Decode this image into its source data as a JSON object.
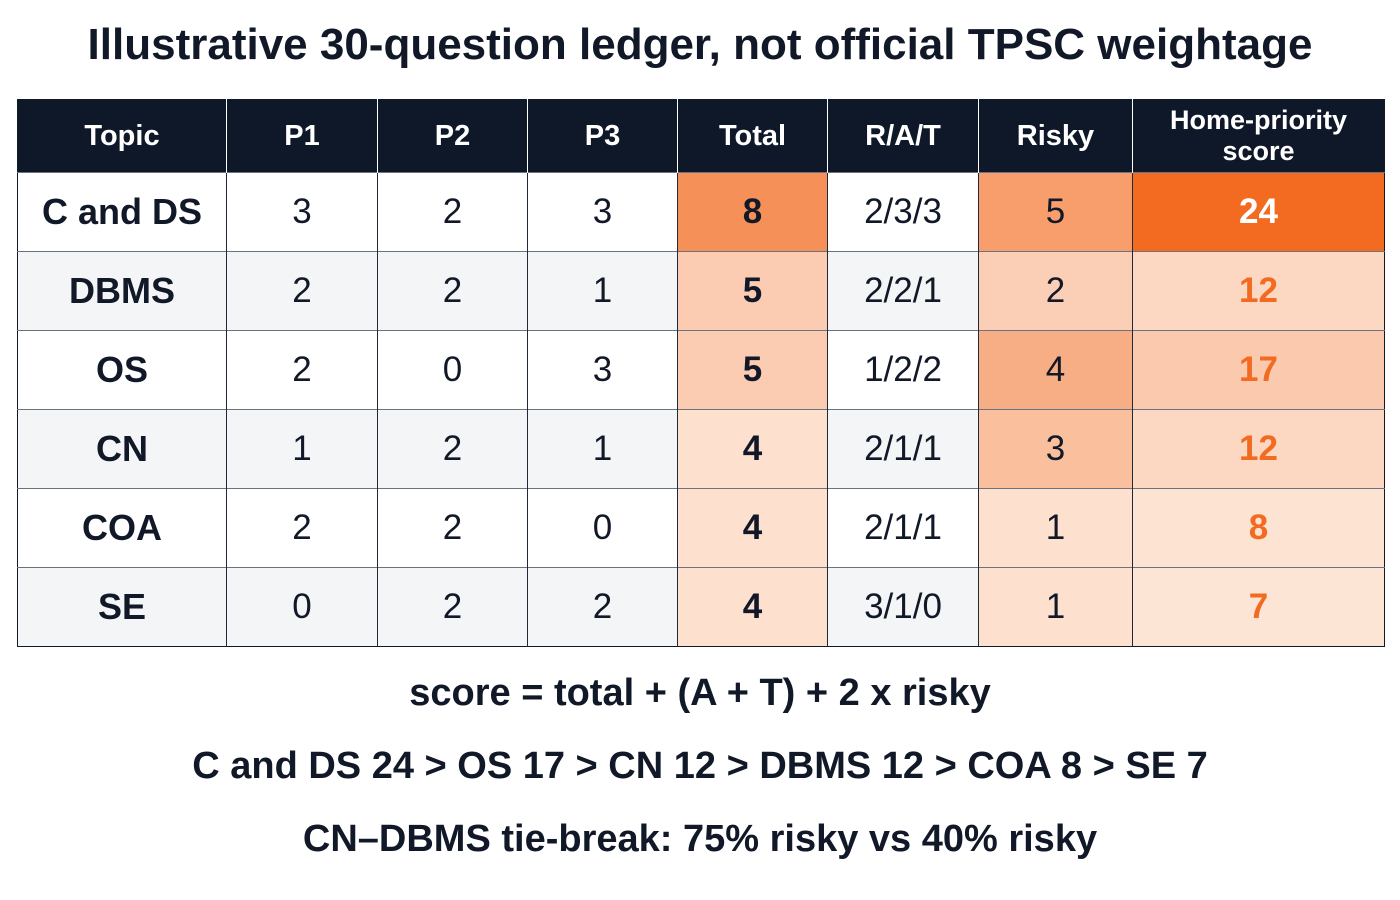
{
  "title": "Illustrative 30-question ledger, not official TPSC weightage",
  "chart_data": {
    "type": "table",
    "columns": [
      "Topic",
      "P1",
      "P2",
      "P3",
      "Total",
      "R/A/T",
      "Risky",
      "Home-priority score"
    ],
    "rows": [
      {
        "topic": "C and DS",
        "p1": "3",
        "p2": "2",
        "p3": "3",
        "total": "8",
        "rat": "2/3/3",
        "risky": "5",
        "score": "24"
      },
      {
        "topic": "DBMS",
        "p1": "2",
        "p2": "2",
        "p3": "1",
        "total": "5",
        "rat": "2/2/1",
        "risky": "2",
        "score": "12"
      },
      {
        "topic": "OS",
        "p1": "2",
        "p2": "0",
        "p3": "3",
        "total": "5",
        "rat": "1/2/2",
        "risky": "4",
        "score": "17"
      },
      {
        "topic": "CN",
        "p1": "1",
        "p2": "2",
        "p3": "1",
        "total": "4",
        "rat": "2/1/1",
        "risky": "3",
        "score": "12"
      },
      {
        "topic": "COA",
        "p1": "2",
        "p2": "2",
        "p3": "0",
        "total": "4",
        "rat": "2/1/1",
        "risky": "1",
        "score": "8"
      },
      {
        "topic": "SE",
        "p1": "0",
        "p2": "2",
        "p3": "2",
        "total": "4",
        "rat": "3/1/0",
        "risky": "1",
        "score": "7"
      }
    ],
    "heat_color": "#f26b21"
  },
  "notes": {
    "formula": "score = total + (A + T) + 2 x risky",
    "ranking": "C and DS 24 > OS 17 > CN 12 > DBMS 12 > COA 8 > SE 7",
    "tiebreak": "CN–DBMS tie-break: 75% risky vs 40% risky"
  }
}
